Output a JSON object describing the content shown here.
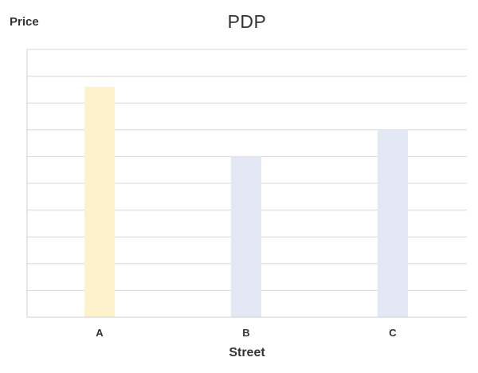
{
  "chart_data": {
    "type": "bar",
    "title": "PDP",
    "xlabel": "Street",
    "ylabel": "Price",
    "categories": [
      "A",
      "B",
      "C"
    ],
    "values": [
      8.6,
      6.0,
      7.0
    ],
    "ylim": [
      0,
      10
    ],
    "grid": true,
    "y_tick_labels_shown": false,
    "colors": [
      "#fdf2cc",
      "#e3e8f4",
      "#e3e8f4"
    ],
    "gridline_color": "#d9d9d9",
    "axis_color": "#cfcfcf"
  }
}
